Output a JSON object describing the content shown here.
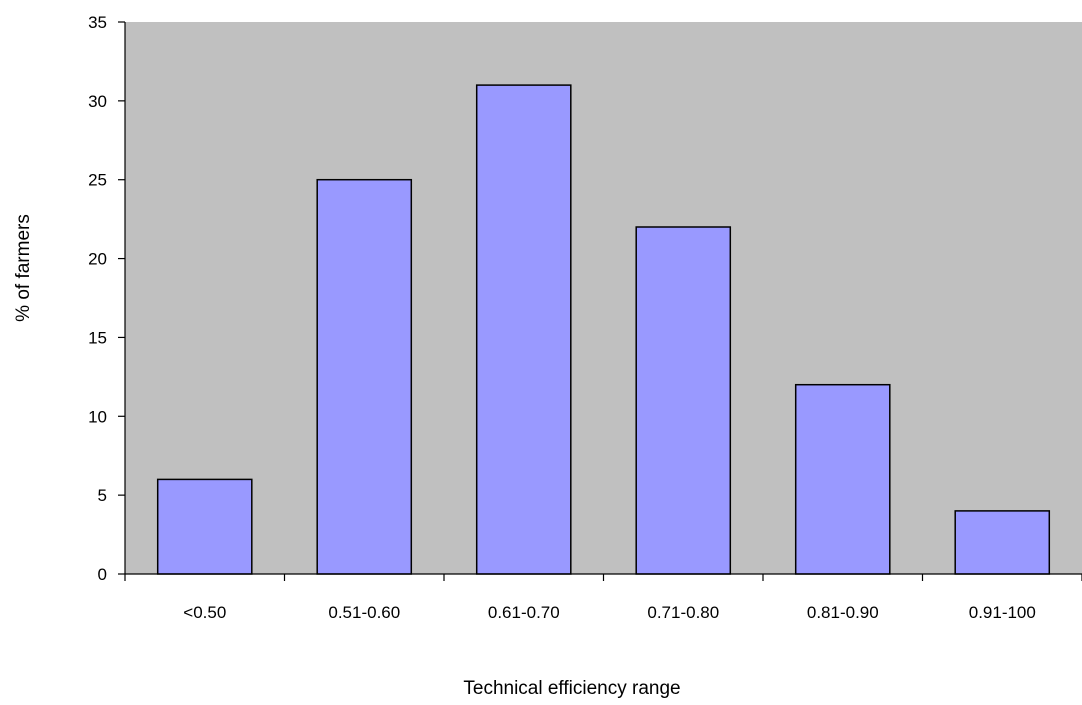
{
  "chart_data": {
    "type": "bar",
    "title": "",
    "xlabel": "Technical efficiency range",
    "ylabel": "% of farmers",
    "categories": [
      "<0.50",
      "0.51-0.60",
      "0.61-0.70",
      "0.71-0.80",
      "0.81-0.90",
      "0.91-100"
    ],
    "values": [
      6,
      25,
      31,
      22,
      12,
      4
    ],
    "ylim": [
      0,
      35
    ],
    "yticks": [
      0,
      5,
      10,
      15,
      20,
      25,
      30,
      35
    ],
    "grid": false,
    "legend": "none",
    "colors": {
      "bar_fill": "#9999ff",
      "bar_stroke": "#000000",
      "plot_background": "#c0c0c0",
      "axis": "#000000"
    }
  }
}
